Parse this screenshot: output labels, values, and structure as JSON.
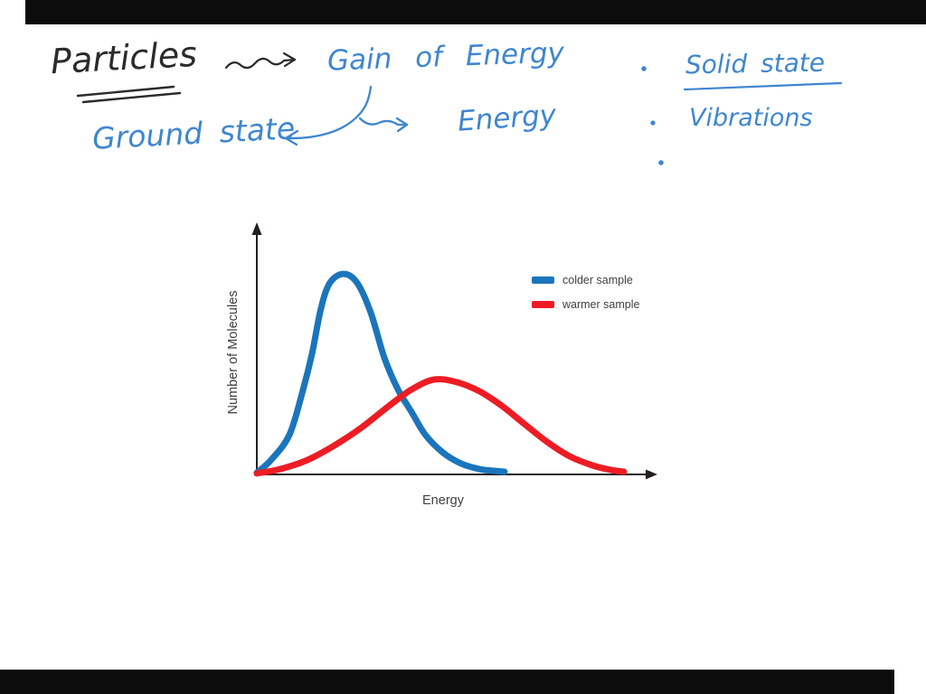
{
  "page": {
    "background_color": "#ffffff",
    "letterbox_color": "#0c0c0c"
  },
  "notes": {
    "ink_dark": "#2b2b2b",
    "ink_blue": "#3f86cf",
    "particles_label": "Particles",
    "gain_of_energy_label": "Gain of Energy",
    "ground_state_label": "Ground state",
    "energy_label": "Energy",
    "solid_state_label": "Solid state",
    "vibrations_label": "Vibrations"
  },
  "chart_data": {
    "type": "line",
    "title": "",
    "xlabel": "Energy",
    "ylabel": "Number of Molecules",
    "x_range": [
      0,
      100
    ],
    "y_range": [
      0,
      100
    ],
    "grid": false,
    "legend_position": "upper right",
    "axis_color": "#231f20",
    "label_color": "#414042",
    "series": [
      {
        "name": "colder sample",
        "color": "#1b75bc",
        "x": [
          0,
          3.7,
          8.4,
          11.9,
          14.2,
          16.5,
          18.8,
          22.3,
          25.8,
          29.3,
          32.8,
          36.3,
          39.8,
          43.3,
          47.9,
          52.6,
          57.2,
          60.7,
          63.7
        ],
        "y": [
          0.7,
          6.0,
          16.3,
          34.8,
          49.6,
          68.1,
          78.5,
          82.2,
          78.5,
          66.3,
          47.8,
          34.8,
          25.6,
          16.3,
          8.9,
          4.4,
          2.2,
          1.5,
          1.1
        ]
      },
      {
        "name": "warmer sample",
        "color": "#ed1c24",
        "x": [
          0,
          6,
          13,
          20,
          27,
          34,
          39.8,
          45.6,
          51.4,
          57.2,
          63,
          68.8,
          74.7,
          80.5,
          86.3,
          90.9,
          94.4
        ],
        "y": [
          0.4,
          2.2,
          5.9,
          11.9,
          19.3,
          28.1,
          34.8,
          38.9,
          37.8,
          34.1,
          28.1,
          20.7,
          13.3,
          7.4,
          3.7,
          1.9,
          1.1
        ]
      }
    ]
  }
}
